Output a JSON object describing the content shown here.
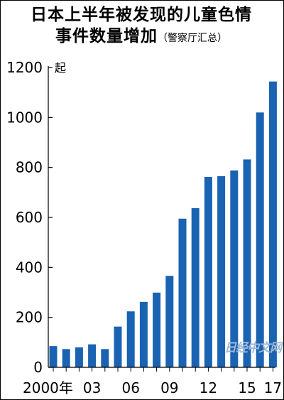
{
  "chart_data": {
    "type": "bar",
    "title_line1": "日本上半年被发现的儿童色情",
    "title_line2": "事件数量增加",
    "title_note": "（警察厅汇总）",
    "unit": "起",
    "x": [
      2000,
      2001,
      2002,
      2003,
      2004,
      2005,
      2006,
      2007,
      2008,
      2009,
      2010,
      2011,
      2012,
      2013,
      2014,
      2015,
      2016,
      2017
    ],
    "values": [
      85,
      73,
      80,
      92,
      73,
      163,
      224,
      262,
      299,
      366,
      595,
      637,
      762,
      765,
      788,
      832,
      1020,
      1144
    ],
    "x_tick_labels": [
      "2000年",
      "03",
      "06",
      "09",
      "12",
      "15",
      "17"
    ],
    "x_tick_years": [
      2000,
      2003,
      2006,
      2009,
      2012,
      2015,
      2017
    ],
    "y_ticks": [
      0,
      200,
      400,
      600,
      800,
      1000,
      1200
    ],
    "ylim": [
      0,
      1200
    ],
    "bar_color": "#1a63b3",
    "grid": false
  },
  "watermark": "日经中文网"
}
